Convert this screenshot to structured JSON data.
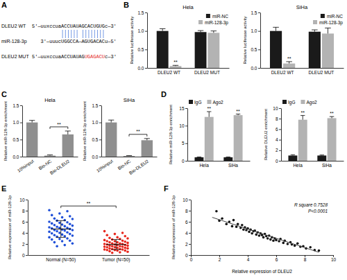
{
  "diagram": {
    "panel": "A",
    "rows": [
      {
        "name": "DLEU2 WT",
        "parts": [
          {
            "text": "5'—uuxccuaACCUAUAGCACUGUGc—3'"
          }
        ]
      },
      {
        "name": "miR-128-3p",
        "parts": [
          {
            "text": "3'—uuucUGGCCA—AGUGACACu—5'"
          }
        ]
      },
      {
        "name": "DLEU2 MUT",
        "parts": [
          {
            "text": "5'—uuxccuaACCUAUAG"
          },
          {
            "text": "UGAGACU",
            "color": "#e3241b"
          },
          {
            "text": "c—3'"
          }
        ]
      }
    ]
  },
  "chart_data": [
    {
      "type": "bar",
      "panel": "B",
      "title": "Hela",
      "y_label": "Relative luciferase activity",
      "categories": [
        "DLEU2 WT",
        "DLEU2 MUT"
      ],
      "series": [
        {
          "name": "miR-NC",
          "color": "#1a1a1a",
          "values": [
            1.0,
            0.97
          ],
          "errors": [
            0.06,
            0.04
          ]
        },
        {
          "name": "miR-128-3p",
          "color": "#b3b3b3",
          "values": [
            0.05,
            0.95
          ],
          "errors": [
            0.02,
            0.05
          ]
        }
      ],
      "ylim": [
        0,
        1.5
      ],
      "yticks": [
        {
          "value": 0,
          "label": "0.0"
        },
        {
          "value": 0.5,
          "label": "0.5"
        },
        {
          "value": 1,
          "label": "1.0"
        },
        {
          "value": 1.5,
          "label": "1.5"
        }
      ],
      "legend": "top-right",
      "annotations": [
        {
          "text": "**",
          "x": "DLEU2 WT",
          "series": "miR-128-3p"
        }
      ]
    },
    {
      "type": "bar",
      "title": "SiHa",
      "y_label": "Relative luciferase activity",
      "categories": [
        "DLEU2 WT",
        "DLEU2 MUT"
      ],
      "series": [
        {
          "name": "miR-NC",
          "color": "#1a1a1a",
          "values": [
            1.0,
            0.98
          ],
          "errors": [
            0.1,
            0.05
          ]
        },
        {
          "name": "miR-128-3p",
          "color": "#b3b3b3",
          "values": [
            0.12,
            0.93
          ],
          "errors": [
            0.05,
            0.15
          ]
        }
      ],
      "ylim": [
        0,
        1.5
      ],
      "yticks": [
        {
          "value": 0,
          "label": "0.0"
        },
        {
          "value": 0.5,
          "label": "0.5"
        },
        {
          "value": 1,
          "label": "1.0"
        },
        {
          "value": 1.5,
          "label": "1.5"
        }
      ],
      "legend": "top-right",
      "annotations": [
        {
          "text": "**",
          "x": "DLEU2 WT",
          "series": "miR-128-3p"
        }
      ]
    },
    {
      "type": "bar",
      "panel": "C",
      "title": "Hela",
      "y_label": "Relative miR-128-3p enrichment",
      "categories": [
        "10%input",
        "Bio-NC",
        "Bio-DLEU2"
      ],
      "values": [
        1.0,
        0.03,
        0.65
      ],
      "errors": [
        0.06,
        0.02,
        0.1
      ],
      "color": "#8f8f8f",
      "ylim": [
        0,
        1.5
      ],
      "yticks": [
        {
          "value": 0,
          "label": "0.0"
        },
        {
          "value": 0.5,
          "label": "0.5"
        },
        {
          "value": 1,
          "label": "1.0"
        },
        {
          "value": 1.5,
          "label": "1.5"
        }
      ],
      "annotations": [
        {
          "text": "**",
          "from": "Bio-NC",
          "to": "Bio-DLEU2"
        }
      ]
    },
    {
      "type": "bar",
      "title": "SiHa",
      "y_label": "Relative miR-128-3p enrichment",
      "categories": [
        "10%input",
        "Bio-NC",
        "Bio-DLEU2"
      ],
      "values": [
        1.0,
        0.02,
        0.48
      ],
      "errors": [
        0.07,
        0.01,
        0.05
      ],
      "color": "#8f8f8f",
      "ylim": [
        0,
        1.5
      ],
      "yticks": [
        {
          "value": 0,
          "label": "0.0"
        },
        {
          "value": 0.5,
          "label": "0.5"
        },
        {
          "value": 1,
          "label": "1.0"
        },
        {
          "value": 1.5,
          "label": "1.5"
        }
      ],
      "annotations": [
        {
          "text": "**",
          "from": "Bio-NC",
          "to": "Bio-DLEU2"
        }
      ]
    },
    {
      "type": "bar",
      "panel": "D",
      "y_label": "Relative miR-128-3p enrichment",
      "categories": [
        "Hela",
        "SiHa"
      ],
      "series": [
        {
          "name": "IgG",
          "color": "#1a1a1a",
          "values": [
            1.0,
            1.0
          ],
          "errors": [
            0.1,
            0.1
          ]
        },
        {
          "name": "Ago2",
          "color": "#b3b3b3",
          "values": [
            12.5,
            13.0
          ],
          "errors": [
            1.5,
            0.3
          ]
        }
      ],
      "ylim": [
        0,
        15
      ],
      "yticks": [
        0,
        5,
        10,
        15
      ],
      "legend": "top-left",
      "annotations": [
        {
          "text": "**",
          "x": "Hela",
          "series": "Ago2"
        },
        {
          "text": "**",
          "x": "SiHa",
          "series": "Ago2"
        }
      ]
    },
    {
      "type": "bar",
      "y_label": "Relative DLEU2 enrichment",
      "categories": [
        "Hela",
        "SiHa"
      ],
      "series": [
        {
          "name": "IgG",
          "color": "#1a1a1a",
          "values": [
            1.0,
            1.0
          ],
          "errors": [
            0.15,
            0.1
          ]
        },
        {
          "name": "Ago2",
          "color": "#b3b3b3",
          "values": [
            7.8,
            8.1
          ],
          "errors": [
            0.8,
            0.3
          ]
        }
      ],
      "ylim": [
        0,
        10
      ],
      "yticks": [
        0,
        2,
        4,
        6,
        8,
        10
      ],
      "legend": "top-left",
      "annotations": [
        {
          "text": "**",
          "x": "Hela",
          "series": "Ago2"
        },
        {
          "text": "**",
          "x": "SiHa",
          "series": "Ago2"
        }
      ]
    },
    {
      "type": "strip",
      "panel": "E",
      "y_label": "Relative expression of miR-128-3p",
      "categories": [
        "Normal (N=50)",
        "Tumor (N=50)"
      ],
      "colors": [
        "#1f4fd8",
        "#e8261c"
      ],
      "groups": [
        [
          8.1,
          7.9,
          7.5,
          7.2,
          7.0,
          6.8,
          6.6,
          6.5,
          6.3,
          6.2,
          6.0,
          5.9,
          5.8,
          5.7,
          5.6,
          5.5,
          5.4,
          5.3,
          5.2,
          5.1,
          5.0,
          4.9,
          4.9,
          4.8,
          4.7,
          4.6,
          4.5,
          4.5,
          4.4,
          4.3,
          4.2,
          4.1,
          4.0,
          3.9,
          3.8,
          3.7,
          3.6,
          3.5,
          3.4,
          3.3,
          3.2,
          3.0,
          2.9,
          2.8,
          2.6,
          2.5,
          2.3,
          2.1,
          1.8,
          1.6
        ],
        [
          4.3,
          4.0,
          3.8,
          3.6,
          3.4,
          3.2,
          3.1,
          3.0,
          2.9,
          2.8,
          2.7,
          2.6,
          2.5,
          2.5,
          2.4,
          2.3,
          2.3,
          2.2,
          2.1,
          2.1,
          2.0,
          2.0,
          1.9,
          1.9,
          1.8,
          1.8,
          1.7,
          1.7,
          1.6,
          1.6,
          1.5,
          1.5,
          1.4,
          1.4,
          1.3,
          1.3,
          1.2,
          1.2,
          1.1,
          1.1,
          1.0,
          1.0,
          0.9,
          0.9,
          0.8,
          0.8,
          0.7,
          0.6,
          0.5,
          0.4
        ]
      ],
      "means": [
        4.7,
        1.9
      ],
      "sds": [
        1.5,
        0.9
      ],
      "ylim": [
        0,
        10
      ],
      "yticks": [
        0,
        2,
        4,
        6,
        8,
        10
      ],
      "annotations": [
        {
          "text": "**",
          "from": "Normal (N=50)",
          "to": "Tumor (N=50)"
        }
      ]
    },
    {
      "type": "scatter",
      "panel": "F",
      "x_label": "Relative expression of DLEU2",
      "y_label": "Relative expression of miR-128-3p",
      "series": [
        {
          "type": "scatter",
          "color": "#111111",
          "marker": "circle",
          "x": [
            1.8,
            2.0,
            2.2,
            2.5,
            2.7,
            2.9,
            3.0,
            3.2,
            3.3,
            3.5,
            3.6,
            3.7,
            3.8,
            3.9,
            4.0,
            4.1,
            4.2,
            4.3,
            4.4,
            4.5,
            4.6,
            4.7,
            4.8,
            4.9,
            5.0,
            5.1,
            5.2,
            5.3,
            5.4,
            5.5,
            5.6,
            5.7,
            5.8,
            5.9,
            6.0,
            6.2,
            6.3,
            6.5,
            6.6,
            6.8,
            7.0,
            7.1,
            7.3,
            7.5,
            7.7,
            7.9,
            8.1,
            8.4,
            8.7,
            9.0
          ],
          "values": [
            7.9,
            6.2,
            6.6,
            5.6,
            6.0,
            5.2,
            6.3,
            5.1,
            5.6,
            4.9,
            5.4,
            4.6,
            5.0,
            4.5,
            4.8,
            4.2,
            4.6,
            3.9,
            4.3,
            4.4,
            3.7,
            4.1,
            3.5,
            3.9,
            3.6,
            3.2,
            3.8,
            3.4,
            3.0,
            3.5,
            2.8,
            3.2,
            2.6,
            3.0,
            2.7,
            2.5,
            2.9,
            2.2,
            2.6,
            2.0,
            2.3,
            1.9,
            1.7,
            2.1,
            1.5,
            1.6,
            1.2,
            1.4,
            0.9,
            0.8
          ]
        },
        {
          "type": "line",
          "color": "#444444",
          "line_style": "solid",
          "x": [
            1.5,
            9.0
          ],
          "values": [
            6.8,
            0.5
          ]
        }
      ],
      "xlim": [
        0,
        10
      ],
      "xticks": [
        0,
        2,
        4,
        6,
        8,
        10
      ],
      "ylim": [
        0,
        10
      ],
      "yticks": [
        0,
        2,
        4,
        6,
        8,
        10
      ],
      "annotations": [
        {
          "text": "R square 0.7528"
        },
        {
          "text": "P<0.0001"
        }
      ]
    }
  ]
}
